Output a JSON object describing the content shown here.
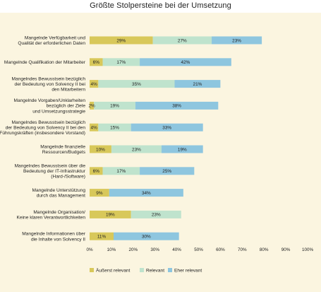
{
  "chart_data": {
    "type": "bar",
    "orientation": "horizontal",
    "stacked": true,
    "title": "Größte Stolpersteine bei der Umsetzung",
    "xlabel": "",
    "ylabel": "",
    "xlim": [
      0,
      100
    ],
    "x_ticks": [
      "0%",
      "10%",
      "20%",
      "30%",
      "40%",
      "50%",
      "60%",
      "70%",
      "80%",
      "90%",
      "100%"
    ],
    "grid": false,
    "legend_position": "bottom",
    "categories": [
      [
        "Mangelnde Verfügbarkeit und",
        "Qualität der erforderlichen Daten"
      ],
      [
        "Mangelnde Qualifikation der Mitarbeiter"
      ],
      [
        "Mangelndes Bewusstsein bezüglich",
        "der Bedeutung von Solvency II bei",
        "den Mitarbeitern"
      ],
      [
        "Mangelnde Vorgaben/Unklarheiten",
        "bezüglich der Ziele",
        "und Umsetzungsstrategie"
      ],
      [
        "Mangelndes Bewusstsein bezüglich",
        "der Bedeutung von Solvency II bei den",
        "Führungskräften (insbesondere Vorstand)"
      ],
      [
        "Mangelnde finanzielle",
        "Ressourcen/Budgets"
      ],
      [
        "Mangelndes Bewusstsein über die",
        "Bedeutung der IT-Infrastruktur",
        "(Hard-/Software)"
      ],
      [
        "Mangelnde Unterstützung",
        "durch das Management"
      ],
      [
        "Mangelnde Organisation/",
        "Keine klaren Verantwortlichkeiten"
      ],
      [
        "Mangelnde Informationen über",
        "die Inhalte von Solvency II"
      ]
    ],
    "series": [
      {
        "name": "Äußerst relevant",
        "color": "#d8c85a",
        "values": [
          29,
          6,
          4,
          2,
          4,
          10,
          6,
          9,
          19,
          11
        ],
        "labels": [
          "29%",
          "6%",
          "4%",
          "2%",
          "4%",
          "10%",
          "6%",
          "9%",
          "19%",
          "11%"
        ]
      },
      {
        "name": "Relevant",
        "color": "#bfe3cd",
        "values": [
          27,
          17,
          35,
          19,
          15,
          23,
          17,
          0,
          23,
          0
        ],
        "labels": [
          "27%",
          "17%",
          "35%",
          "19%",
          "15%",
          "23%",
          "17%",
          "",
          "23%",
          ""
        ]
      },
      {
        "name": "Eher relevant",
        "color": "#8ec6df",
        "values": [
          23,
          42,
          21,
          38,
          33,
          19,
          25,
          34,
          0,
          30
        ],
        "labels": [
          "23%",
          "42%",
          "21%",
          "38%",
          "33%",
          "19%",
          "25%",
          "34%",
          "",
          "30%"
        ]
      }
    ]
  }
}
